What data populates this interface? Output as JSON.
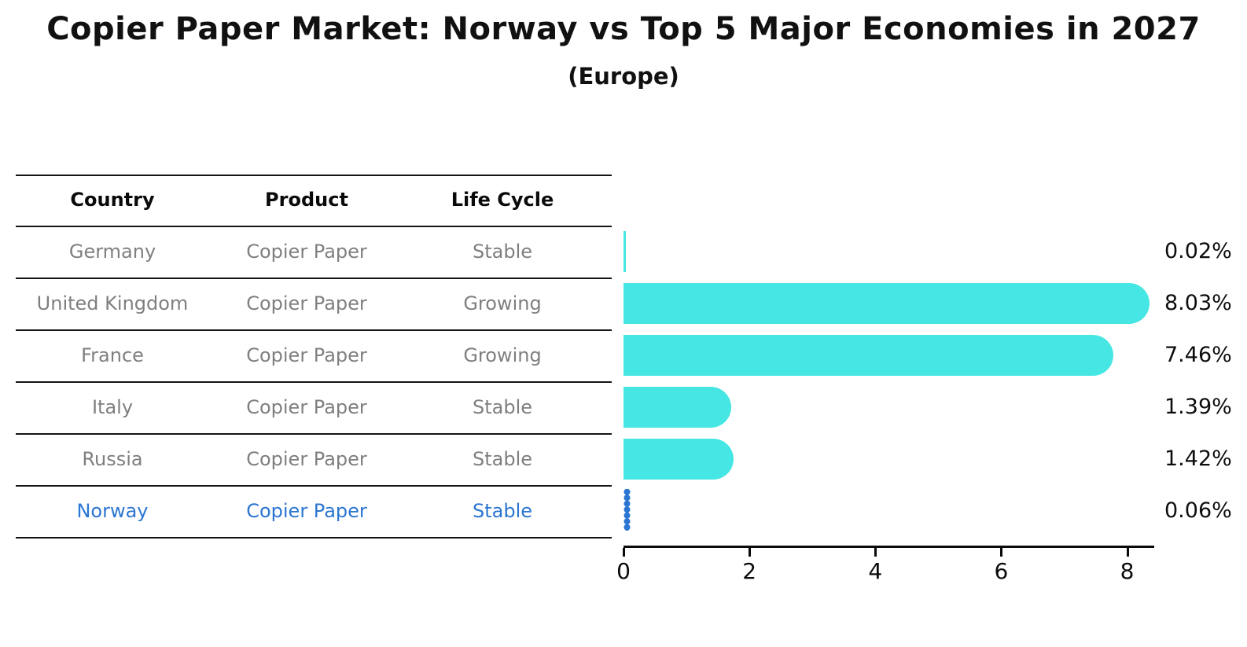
{
  "title": "Copier Paper Market: Norway vs Top 5 Major Economies in 2027",
  "subtitle": "(Europe)",
  "colors": {
    "bar": "#45e6e3",
    "highlight": "#2b76d2",
    "table_text": "#7f7f7f",
    "axis": "#0a0a0a"
  },
  "table": {
    "headers": [
      "Country",
      "Product",
      "Life Cycle"
    ],
    "rows": [
      {
        "country": "Germany",
        "product": "Copier Paper",
        "life_cycle": "Stable",
        "highlight": false
      },
      {
        "country": "United Kingdom",
        "product": "Copier Paper",
        "life_cycle": "Growing",
        "highlight": false
      },
      {
        "country": "France",
        "product": "Copier Paper",
        "life_cycle": "Growing",
        "highlight": false
      },
      {
        "country": "Italy",
        "product": "Copier Paper",
        "life_cycle": "Stable",
        "highlight": false
      },
      {
        "country": "Russia",
        "product": "Copier Paper",
        "life_cycle": "Stable",
        "highlight": true
      }
    ]
  },
  "chart_data": {
    "type": "bar",
    "orientation": "horizontal",
    "title": "Copier Paper Market: Norway vs Top 5 Major Economies in 2027",
    "subtitle": "(Europe)",
    "categories": [
      "Germany",
      "United Kingdom",
      "France",
      "Italy",
      "Russia",
      "Norway"
    ],
    "values": [
      0.02,
      8.03,
      7.46,
      1.39,
      1.42,
      0.06
    ],
    "value_labels": [
      "0.02%",
      "8.03%",
      "7.46%",
      "1.39%",
      "1.42%",
      "0.06%"
    ],
    "x_ticks": [
      0,
      2,
      4,
      6,
      8
    ],
    "xlim": [
      0,
      8.43
    ],
    "xlabel": "",
    "ylabel": "",
    "grid": false,
    "legend": false,
    "highlight_category": "Norway",
    "highlight_life_cycle": "Stable",
    "highlight_product": "Copier Paper"
  }
}
